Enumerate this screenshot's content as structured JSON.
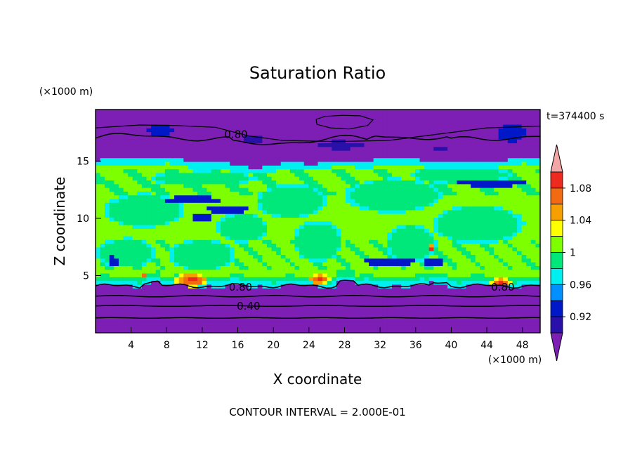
{
  "chart_data": {
    "type": "heatmap",
    "title": "Saturation Ratio",
    "xlabel": "X coordinate",
    "ylabel": "Z coordinate",
    "x_unit": "(×1000 m)",
    "y_unit": "(×1000 m)",
    "time_label": "t=374400 s",
    "footer": "CONTOUR INTERVAL = 2.000E-01",
    "xlim": [
      0,
      50
    ],
    "ylim": [
      0,
      19.5
    ],
    "x_ticks": [
      4,
      8,
      12,
      16,
      20,
      24,
      28,
      32,
      36,
      40,
      44,
      48
    ],
    "x_tick_labels": [
      "4",
      "8",
      "12",
      "16",
      "20",
      "24",
      "28",
      "32",
      "36",
      "40",
      "44",
      "48"
    ],
    "y_ticks": [
      5,
      10,
      15
    ],
    "y_tick_labels": [
      "5",
      "10",
      "15"
    ],
    "colorbar": {
      "labels": [
        {
          "value": 1.08,
          "text": "1.08"
        },
        {
          "value": 1.04,
          "text": "1.04"
        },
        {
          "value": 1.0,
          "text": "1"
        },
        {
          "value": 0.96,
          "text": "0.96"
        },
        {
          "value": 0.92,
          "text": "0.92"
        }
      ],
      "bins": [
        {
          "min": 1.1,
          "color": "#f4a6a6"
        },
        {
          "min": 1.08,
          "color": "#ee2a1f"
        },
        {
          "min": 1.06,
          "color": "#f36a10"
        },
        {
          "min": 1.04,
          "color": "#f5a000"
        },
        {
          "min": 1.02,
          "color": "#ffff00"
        },
        {
          "min": 1.0,
          "color": "#7dff00"
        },
        {
          "min": 0.98,
          "color": "#00e87a"
        },
        {
          "min": 0.96,
          "color": "#00f0f0"
        },
        {
          "min": 0.94,
          "color": "#0090ff"
        },
        {
          "min": 0.92,
          "color": "#0018c8"
        },
        {
          "min": 0.9,
          "color": "#2810a8"
        },
        {
          "min": 0.0,
          "color": "#7d1fb5"
        }
      ]
    },
    "contour_labels": [
      {
        "x": 15.8,
        "z": 17.3,
        "text": "0.80"
      },
      {
        "x": 16.3,
        "z": 3.95,
        "text": "0.80"
      },
      {
        "x": 17.2,
        "z": 2.3,
        "text": "0.40"
      },
      {
        "x": 45.8,
        "z": 3.95,
        "text": "0.80"
      }
    ],
    "regions": {
      "lower_dry_layer": {
        "z_min": 0,
        "z_max": 4.1,
        "value": 0.5
      },
      "middle_cloud_layer": {
        "z_min": 4.1,
        "z_max": 14.5,
        "value": 1.01
      },
      "upper_dry_layer": {
        "z_min": 14.5,
        "z_max": 19.5,
        "value": 0.72
      }
    }
  }
}
